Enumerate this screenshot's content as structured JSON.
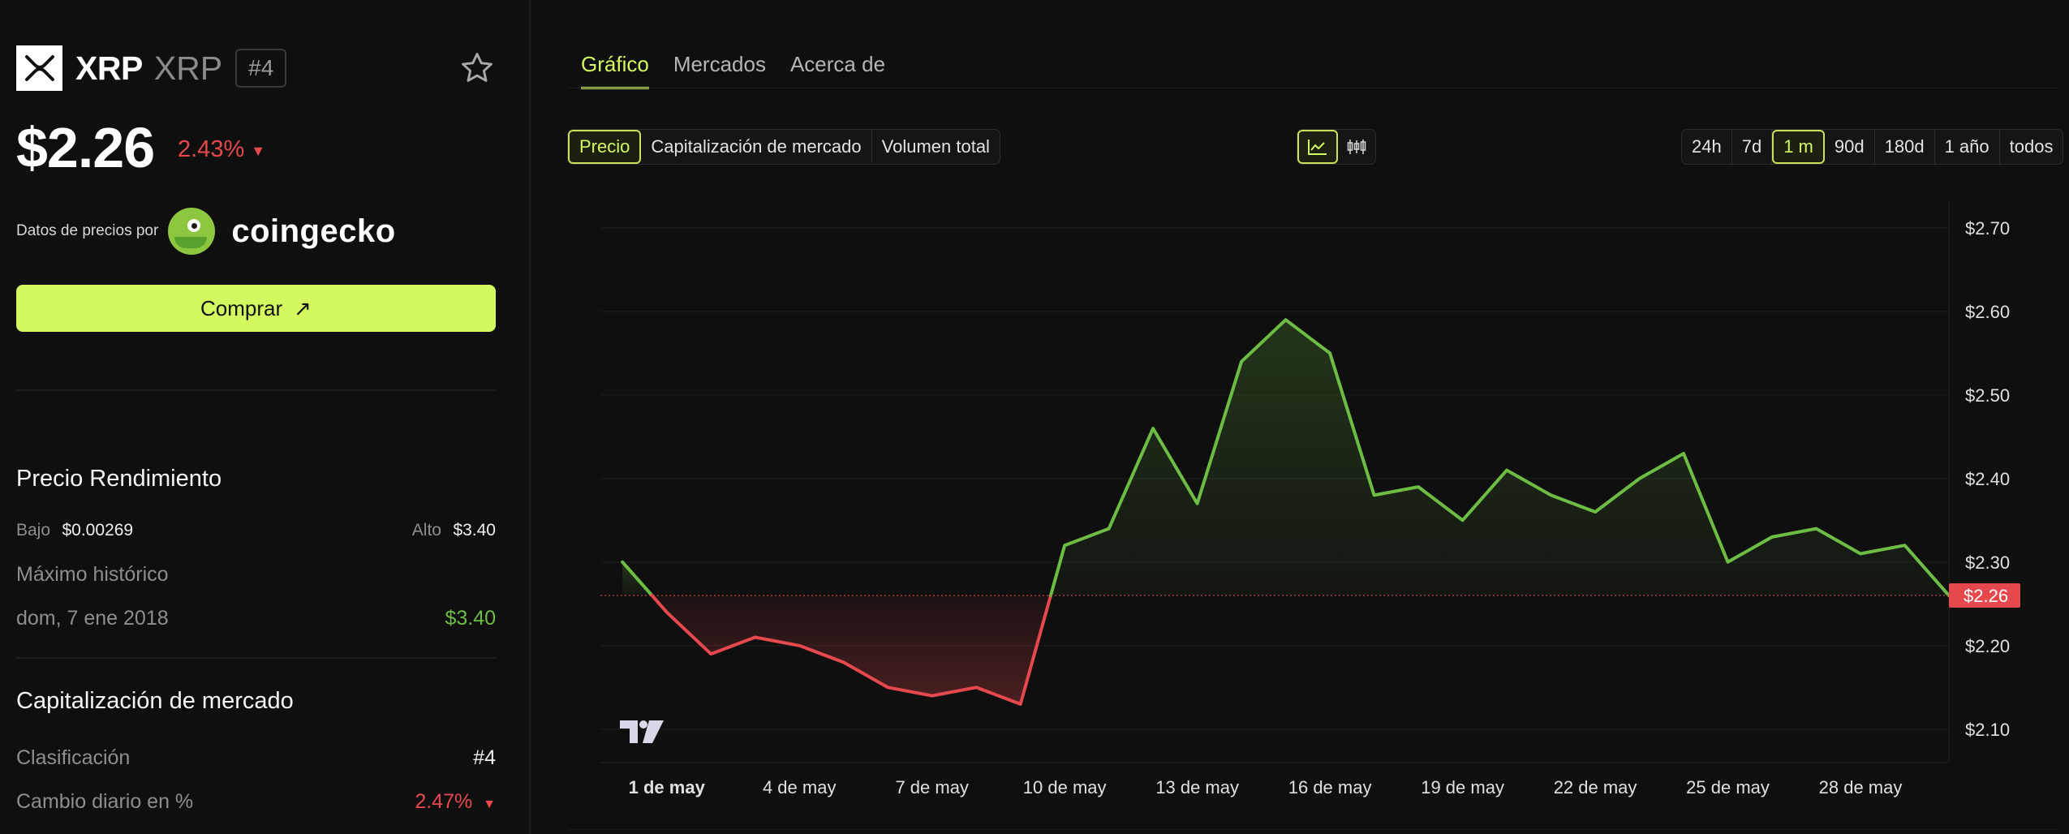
{
  "coin": {
    "name": "XRP",
    "symbol": "XRP",
    "rank": "#4",
    "price": "$2.26",
    "change": "2.43%",
    "change_direction": "down"
  },
  "powered_by": {
    "label": "Datos de precios por",
    "brand": "coingecko"
  },
  "buy_button": {
    "label": "Comprar"
  },
  "performance": {
    "title": "Precio Rendimiento",
    "low_label": "Bajo",
    "low_value": "$0.00269",
    "high_label": "Alto",
    "high_value": "$3.40",
    "ath_label": "Máximo histórico",
    "ath_date": "dom, 7 ene 2018",
    "ath_value": "$3.40"
  },
  "market_cap": {
    "title": "Capitalización de mercado",
    "rank_label": "Clasificación",
    "rank_value": "#4",
    "daily_change_label": "Cambio diario en %",
    "daily_change_value": "2.47%"
  },
  "tabs": [
    "Gráfico",
    "Mercados",
    "Acerca de"
  ],
  "metric_selector": {
    "items": [
      "Precio",
      "Capitalización de mercado",
      "Volumen total"
    ],
    "selected": "Precio"
  },
  "chart_type_selector": {
    "items": [
      "line-chart-icon",
      "candlestick-icon"
    ],
    "selected": "line-chart-icon"
  },
  "range_selector": {
    "items": [
      "24h",
      "7d",
      "1 m",
      "90d",
      "180d",
      "1 año",
      "todos"
    ],
    "selected": "1 m"
  },
  "colors": {
    "accent": "#d4f85f",
    "up": "#6dbd45",
    "down": "#e5484d",
    "background": "#0f0f0f"
  },
  "chart_data": {
    "type": "line",
    "baseline": 2.26,
    "current_price_label": "$2.26",
    "ylim": [
      2.06,
      2.73
    ],
    "y_ticks": [
      2.1,
      2.2,
      2.3,
      2.4,
      2.5,
      2.6,
      2.7
    ],
    "y_tick_labels": [
      "$2.10",
      "$2.20",
      "$2.30",
      "$2.40",
      "$2.50",
      "$2.60",
      "$2.70"
    ],
    "x_tick_labels": [
      "1 de may",
      "4 de may",
      "7 de may",
      "10 de may",
      "13 de may",
      "16 de may",
      "19 de may",
      "22 de may",
      "25 de may",
      "28 de may"
    ],
    "x_tick_positions": [
      1,
      4,
      7,
      10,
      13,
      16,
      19,
      22,
      25,
      28
    ],
    "bold_x_tick": "1 de may",
    "x_range": [
      -0.5,
      30.0
    ],
    "x": [
      0,
      1,
      2,
      3,
      4,
      5,
      6,
      7,
      8,
      9,
      10,
      11,
      12,
      13,
      14,
      15,
      16,
      17,
      18,
      19,
      20,
      21,
      22,
      23,
      24,
      25,
      26,
      27,
      28,
      29,
      30
    ],
    "values": [
      2.3,
      2.24,
      2.19,
      2.21,
      2.2,
      2.18,
      2.15,
      2.14,
      2.15,
      2.13,
      2.32,
      2.34,
      2.46,
      2.37,
      2.54,
      2.59,
      2.55,
      2.38,
      2.39,
      2.35,
      2.41,
      2.38,
      2.36,
      2.4,
      2.43,
      2.3,
      2.33,
      2.34,
      2.31,
      2.32,
      2.26
    ],
    "grid": true,
    "watermark": "tradingview-logo"
  }
}
